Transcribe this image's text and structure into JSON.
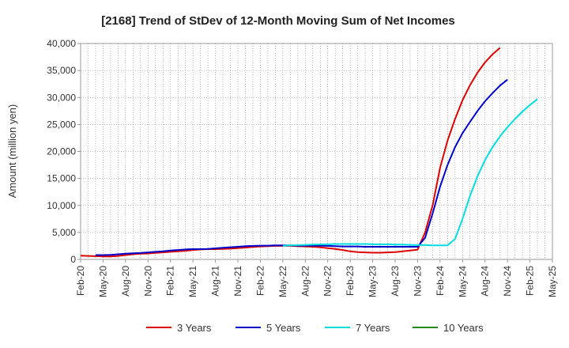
{
  "chart_data": {
    "type": "line",
    "title": "[2168]  Trend of StDev of 12-Month Moving Sum of Net Incomes",
    "ylabel": "Amount (million yen)",
    "xlabel": "",
    "ylim": [
      0,
      40000
    ],
    "yticks": [
      0,
      5000,
      10000,
      15000,
      20000,
      25000,
      30000,
      35000,
      40000
    ],
    "ytick_labels": [
      "0",
      "5,000",
      "10,000",
      "15,000",
      "20,000",
      "25,000",
      "30,000",
      "35,000",
      "40,000"
    ],
    "xticks": [
      "Feb-20",
      "May-20",
      "Aug-20",
      "Nov-20",
      "Feb-21",
      "May-21",
      "Aug-21",
      "Nov-21",
      "Feb-22",
      "May-22",
      "Aug-22",
      "Nov-22",
      "Feb-23",
      "May-23",
      "Aug-23",
      "Nov-23",
      "Feb-24",
      "May-24",
      "Aug-24",
      "Nov-24",
      "Feb-25",
      "May-25"
    ],
    "x_start": "Feb-20",
    "grid": true,
    "legend_position": "bottom",
    "series": [
      {
        "name": "3 Years",
        "color": "#dd0000",
        "start": "Feb-20",
        "values": [
          700,
          650,
          600,
          550,
          550,
          650,
          800,
          950,
          1050,
          1100,
          1200,
          1300,
          1400,
          1500,
          1600,
          1750,
          1850,
          1900,
          1900,
          1950,
          2000,
          2100,
          2200,
          2300,
          2400,
          2450,
          2500,
          2500,
          2500,
          2450,
          2400,
          2350,
          2250,
          2100,
          1950,
          1750,
          1500,
          1350,
          1300,
          1250,
          1250,
          1300,
          1350,
          1500,
          1650,
          1800,
          5000,
          10000,
          17000,
          22000,
          26000,
          29500,
          32300,
          34600,
          36500,
          38000,
          39200
        ]
      },
      {
        "name": "5 Years",
        "color": "#0000cc",
        "start": "Apr-20",
        "values": [
          800,
          800,
          850,
          950,
          1050,
          1150,
          1200,
          1300,
          1400,
          1500,
          1650,
          1750,
          1850,
          1900,
          1900,
          1950,
          2050,
          2150,
          2250,
          2350,
          2450,
          2500,
          2550,
          2550,
          2600,
          2600,
          2600,
          2550,
          2550,
          2550,
          2550,
          2500,
          2450,
          2400,
          2400,
          2400,
          2350,
          2350,
          2350,
          2350,
          2350,
          2350,
          2350,
          2350,
          4000,
          8500,
          13500,
          17500,
          20800,
          23400,
          25500,
          27500,
          29300,
          30800,
          32200,
          33300
        ]
      },
      {
        "name": "7 Years",
        "color": "#00dddd",
        "start": "May-22",
        "values": [
          2500,
          2600,
          2650,
          2700,
          2750,
          2800,
          2800,
          2850,
          2850,
          2850,
          2850,
          2850,
          2800,
          2800,
          2800,
          2750,
          2750,
          2700,
          2650,
          2650,
          2600,
          2600,
          2600,
          3800,
          7500,
          11800,
          15400,
          18400,
          20800,
          22800,
          24500,
          26000,
          27400,
          28600,
          29700
        ]
      },
      {
        "name": "10 Years",
        "color": "#228822",
        "start": "Feb-20",
        "values": []
      }
    ]
  }
}
